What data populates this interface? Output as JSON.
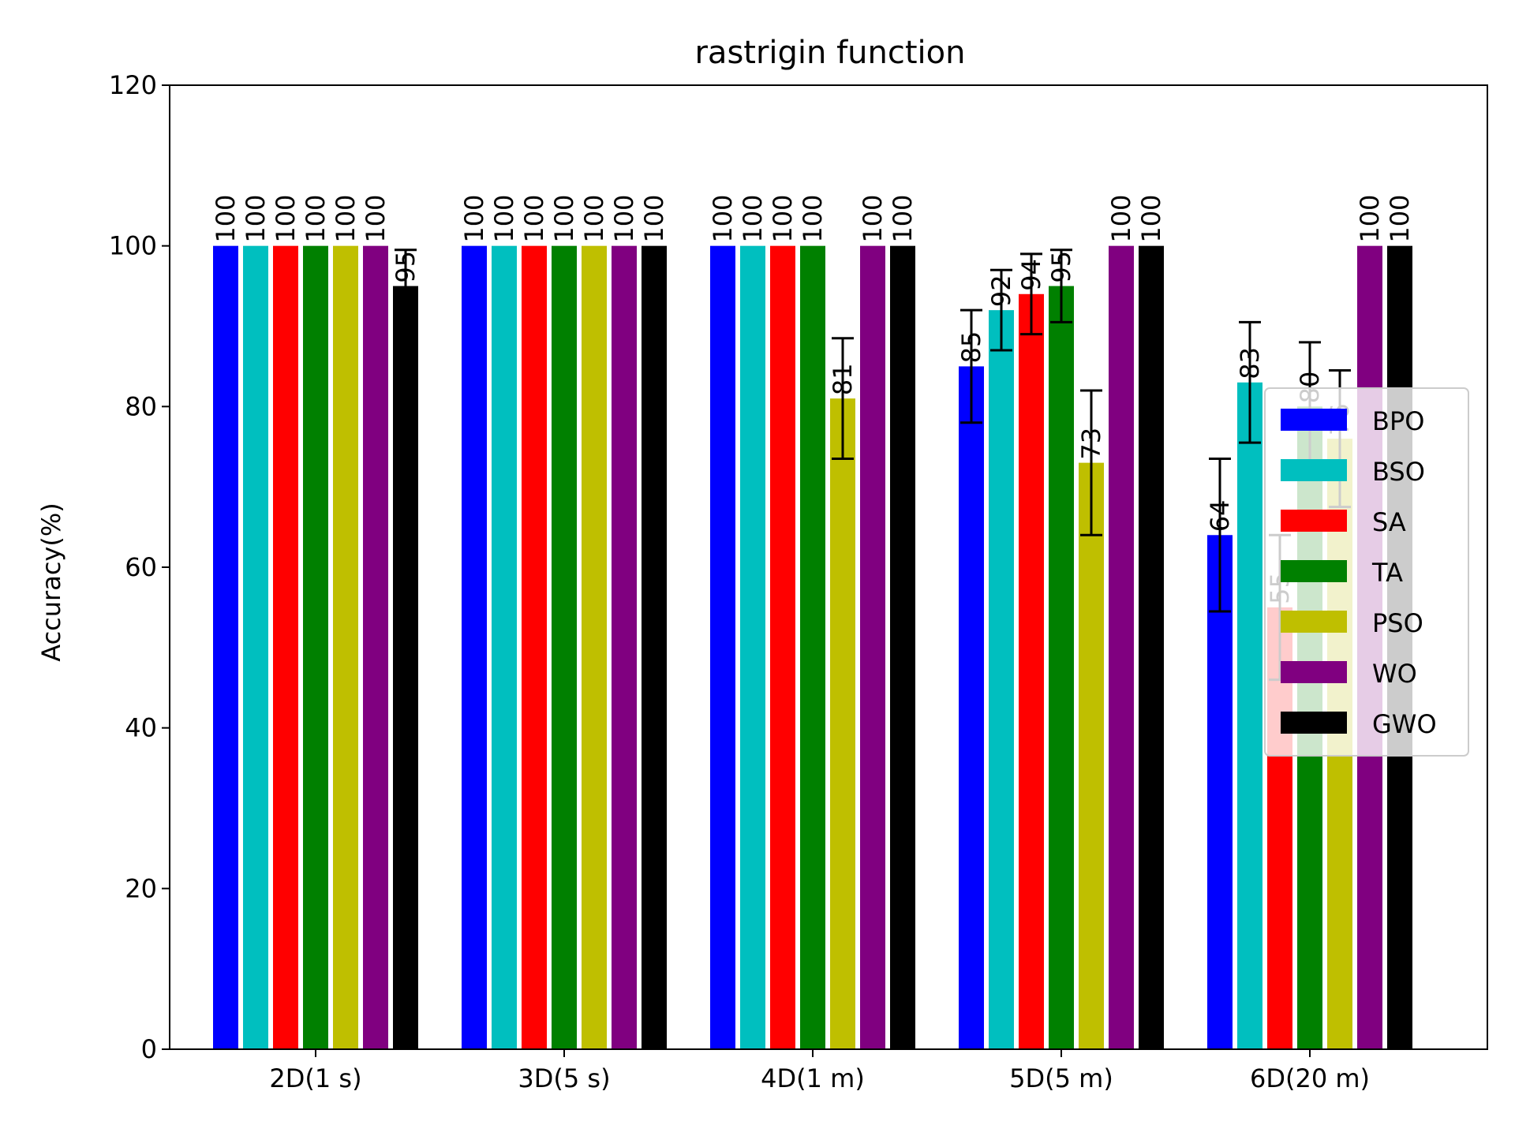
{
  "chart_data": {
    "type": "bar",
    "title": "rastrigin function",
    "xlabel": "",
    "ylabel": "Accuracy(%)",
    "ylim": [
      0,
      120
    ],
    "yticks": [
      0,
      20,
      40,
      60,
      80,
      100,
      120
    ],
    "categories": [
      "2D(1 s)",
      "3D(5 s)",
      "4D(1 m)",
      "5D(5 m)",
      "6D(20 m)"
    ],
    "legend_position": "center-right",
    "grid": false,
    "series": [
      {
        "name": "BPO",
        "color": "#0000ff",
        "values": [
          100,
          100,
          100,
          85,
          64
        ],
        "errors": [
          0,
          0,
          0,
          7,
          9.5
        ]
      },
      {
        "name": "BSO",
        "color": "#00bfbf",
        "values": [
          100,
          100,
          100,
          92,
          83
        ],
        "errors": [
          0,
          0,
          0,
          5,
          7.5
        ]
      },
      {
        "name": "SA",
        "color": "#ff0000",
        "values": [
          100,
          100,
          100,
          94,
          55
        ],
        "errors": [
          0,
          0,
          0,
          5,
          9
        ]
      },
      {
        "name": "TA",
        "color": "#008000",
        "values": [
          100,
          100,
          100,
          95,
          80
        ],
        "errors": [
          0,
          0,
          0,
          4.5,
          8
        ]
      },
      {
        "name": "PSO",
        "color": "#bfbf00",
        "values": [
          100,
          100,
          81,
          73,
          76
        ],
        "errors": [
          0,
          0,
          7.5,
          9,
          8.5
        ]
      },
      {
        "name": "WO",
        "color": "#800080",
        "values": [
          100,
          100,
          100,
          100,
          100
        ],
        "errors": [
          0,
          0,
          0,
          0,
          0
        ]
      },
      {
        "name": "GWO",
        "color": "#000000",
        "values": [
          95,
          100,
          100,
          100,
          100
        ],
        "errors": [
          4.5,
          0,
          0,
          0,
          0
        ]
      }
    ]
  }
}
